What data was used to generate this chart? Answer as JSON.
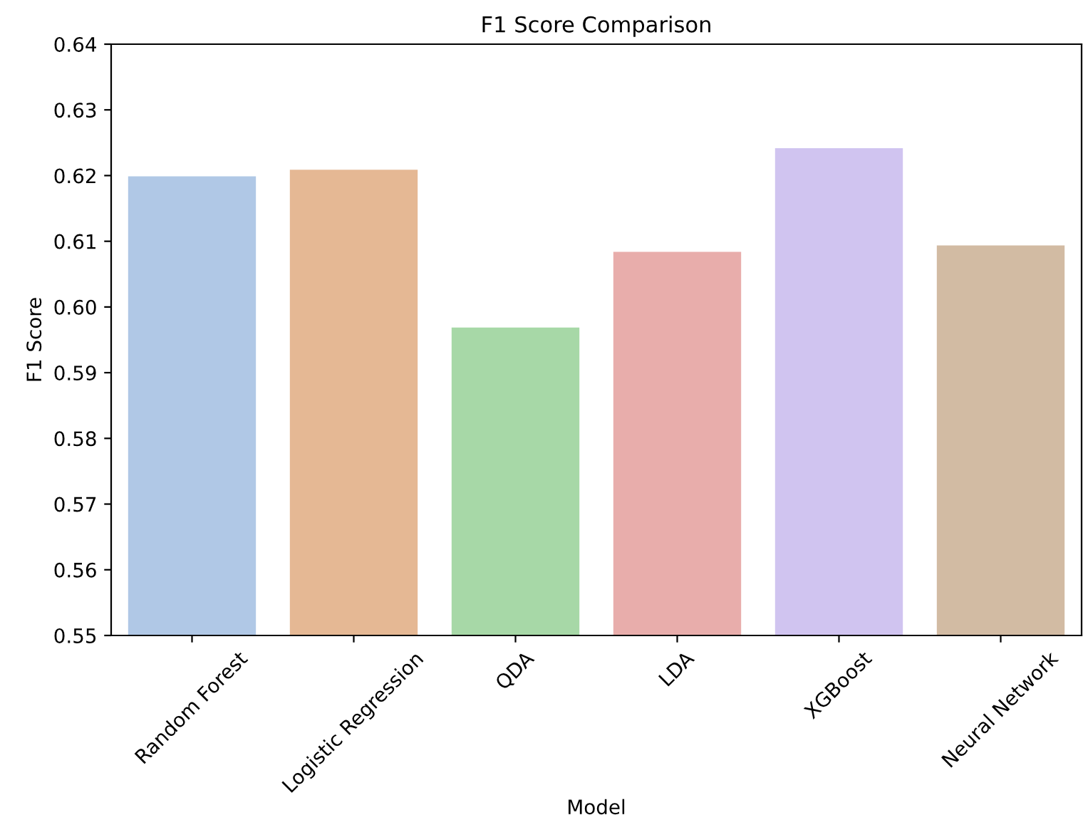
{
  "chart_data": {
    "type": "bar",
    "title": "F1 Score Comparison",
    "xlabel": "Model",
    "ylabel": "F1 Score",
    "categories": [
      "Random Forest",
      "Logistic Regression",
      "QDA",
      "LDA",
      "XGBoost",
      "Neural Network"
    ],
    "values": [
      0.62,
      0.621,
      0.597,
      0.6085,
      0.6243,
      0.6095
    ],
    "colors": [
      "#b0c8e6",
      "#e5b894",
      "#a7d8a7",
      "#e8adab",
      "#d0c4f0",
      "#d2bba3"
    ],
    "ylim": [
      0.55,
      0.64
    ],
    "yticks": [
      0.55,
      0.56,
      0.57,
      0.58,
      0.59,
      {
        "value": 0.6,
        "label": "0.60"
      },
      0.61,
      0.62,
      0.63,
      0.64
    ]
  }
}
